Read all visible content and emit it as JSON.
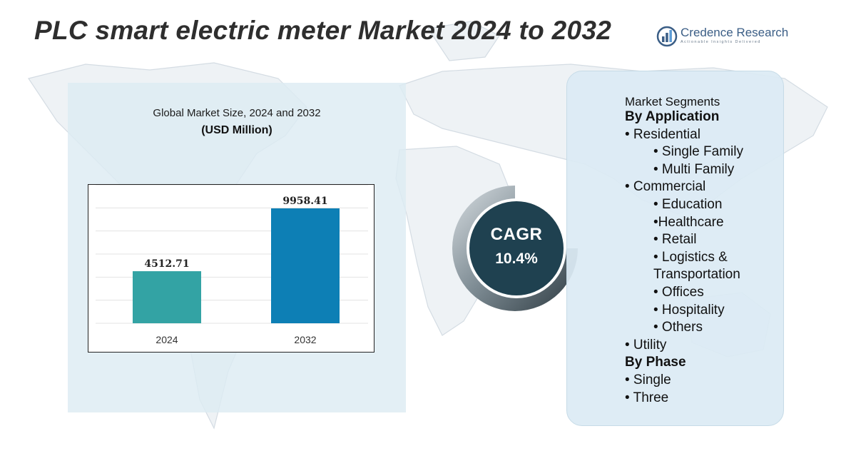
{
  "header": {
    "title": "PLC smart electric meter Market 2024 to 2032"
  },
  "logo": {
    "name": "Credence Research",
    "tagline": "Actionable Insights Delivered",
    "icon": "bar-chart-circle-icon"
  },
  "chart_data": {
    "type": "bar",
    "title": "Global Market Size, 2024 and 2032",
    "unit": "(USD Million)",
    "categories": [
      "2024",
      "2032"
    ],
    "values": [
      4512.71,
      9958.41
    ],
    "value_labels": [
      "4512.71",
      "9958.41"
    ],
    "colors": [
      "#33a3a4",
      "#0d7fb5"
    ],
    "grid": true,
    "legend": "none",
    "ylim": [
      0,
      12000
    ]
  },
  "cagr": {
    "label": "CAGR",
    "value": "10.4%"
  },
  "segments": {
    "header": "Market Segments",
    "lines": [
      {
        "text": "By Application",
        "level": 0
      },
      {
        "text": "• Residential",
        "level": 1
      },
      {
        "text": "• Single Family",
        "level": 2
      },
      {
        "text": "• Multi Family",
        "level": 2
      },
      {
        "text": "• Commercial",
        "level": 1
      },
      {
        "text": "•    Education",
        "level": 2
      },
      {
        "text": "•Healthcare",
        "level": 3
      },
      {
        "text": "• Retail",
        "level": 2
      },
      {
        "text": "• Logistics &",
        "level": 2
      },
      {
        "text": "Transportation",
        "level": 3
      },
      {
        "text": "• Offices",
        "level": 3
      },
      {
        "text": "• Hospitality",
        "level": 3
      },
      {
        "text": "• Others",
        "level": 3
      },
      {
        "text": "• Utility",
        "level": 1
      },
      {
        "text": "By Phase",
        "level": 0
      },
      {
        "text": "• Single",
        "level": 1
      },
      {
        "text": "• Three",
        "level": 1
      }
    ]
  },
  "colors": {
    "panel": "#dcecf3",
    "cagr_circle": "#1f4150",
    "title": "#2e2e2e",
    "brand": "#3b5e86"
  }
}
